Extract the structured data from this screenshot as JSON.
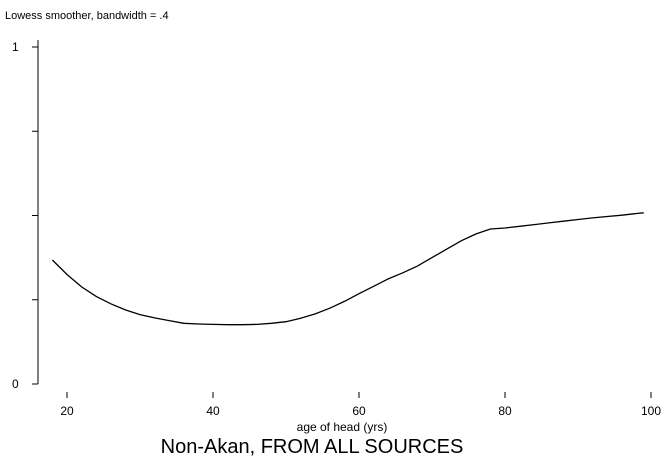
{
  "chart_data": {
    "type": "line",
    "subtitle": "Lowess smoother, bandwidth = .4",
    "xlabel": "age of head (yrs)",
    "ylabel": "",
    "caption": "Non-Akan, FROM ALL SOURCES",
    "xlim": [
      16,
      100
    ],
    "ylim": [
      0,
      1
    ],
    "x_ticks": [
      20,
      40,
      60,
      80,
      100
    ],
    "y_ticks": [
      0,
      0.25,
      0.5,
      0.75,
      1
    ],
    "y_tick_labels": [
      "0",
      "",
      "",
      "",
      "1"
    ],
    "grid": false,
    "series": [
      {
        "x": [
          18,
          20,
          22,
          24,
          26,
          28,
          30,
          32,
          34,
          36,
          38,
          40,
          42,
          44,
          46,
          48,
          50,
          52,
          54,
          56,
          58,
          60,
          62,
          64,
          66,
          68,
          70,
          72,
          74,
          76,
          78,
          80,
          82,
          84,
          86,
          88,
          90,
          92,
          94,
          96,
          98,
          99
        ],
        "y": [
          0.368,
          0.325,
          0.288,
          0.26,
          0.238,
          0.22,
          0.206,
          0.196,
          0.188,
          0.18,
          0.178,
          0.177,
          0.176,
          0.176,
          0.177,
          0.18,
          0.185,
          0.195,
          0.208,
          0.225,
          0.245,
          0.268,
          0.29,
          0.312,
          0.33,
          0.35,
          0.375,
          0.4,
          0.425,
          0.445,
          0.46,
          0.463,
          0.468,
          0.473,
          0.478,
          0.483,
          0.488,
          0.493,
          0.497,
          0.501,
          0.506,
          0.508
        ]
      }
    ]
  }
}
